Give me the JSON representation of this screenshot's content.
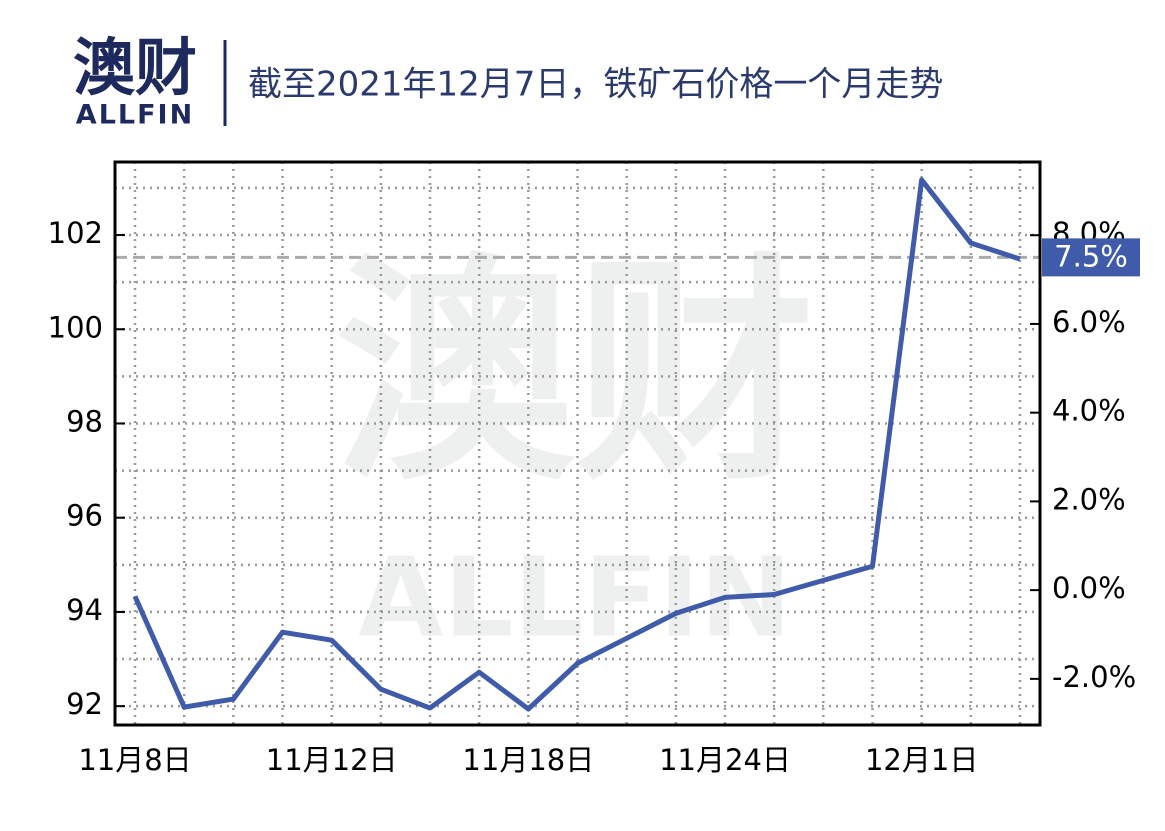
{
  "logo": {
    "cn": "澳财",
    "en": "ALLFIN"
  },
  "chart_data": {
    "type": "line",
    "title": "截至2021年12月7日，铁矿石价格一个月走势",
    "categories": [
      "11月8日",
      null,
      null,
      null,
      "11月12日",
      null,
      null,
      null,
      "11月18日",
      null,
      null,
      null,
      "11月24日",
      null,
      null,
      null,
      "12月1日",
      null,
      null
    ],
    "values": [
      94.33,
      91.98,
      92.15,
      93.57,
      93.4,
      92.36,
      91.96,
      92.72,
      91.94,
      92.91,
      93.44,
      93.97,
      94.31,
      94.37,
      94.67,
      94.97,
      103.17,
      101.83,
      101.49
    ],
    "color": "#3f5ba9",
    "ylim": [
      91.6,
      103.55
    ],
    "yticks": [
      92,
      94,
      96,
      98,
      100,
      102
    ],
    "yminorticks": [
      93,
      95,
      97,
      99,
      101,
      103
    ],
    "y2lim": [
      -3.04,
      9.65
    ],
    "y2ticks": [
      {
        "value": -2,
        "label": "-2.0%"
      },
      {
        "value": 0,
        "label": "0.0%"
      },
      {
        "value": 2,
        "label": "2.0%"
      },
      {
        "value": 4,
        "label": "4.0%"
      },
      {
        "value": 6,
        "label": "6.0%"
      },
      {
        "value": 8,
        "label": "8.0%"
      }
    ],
    "reference_line": {
      "axis": "y2",
      "value": 7.5,
      "label": "7.5%",
      "color": "#aaaaaa"
    },
    "grid": true
  }
}
